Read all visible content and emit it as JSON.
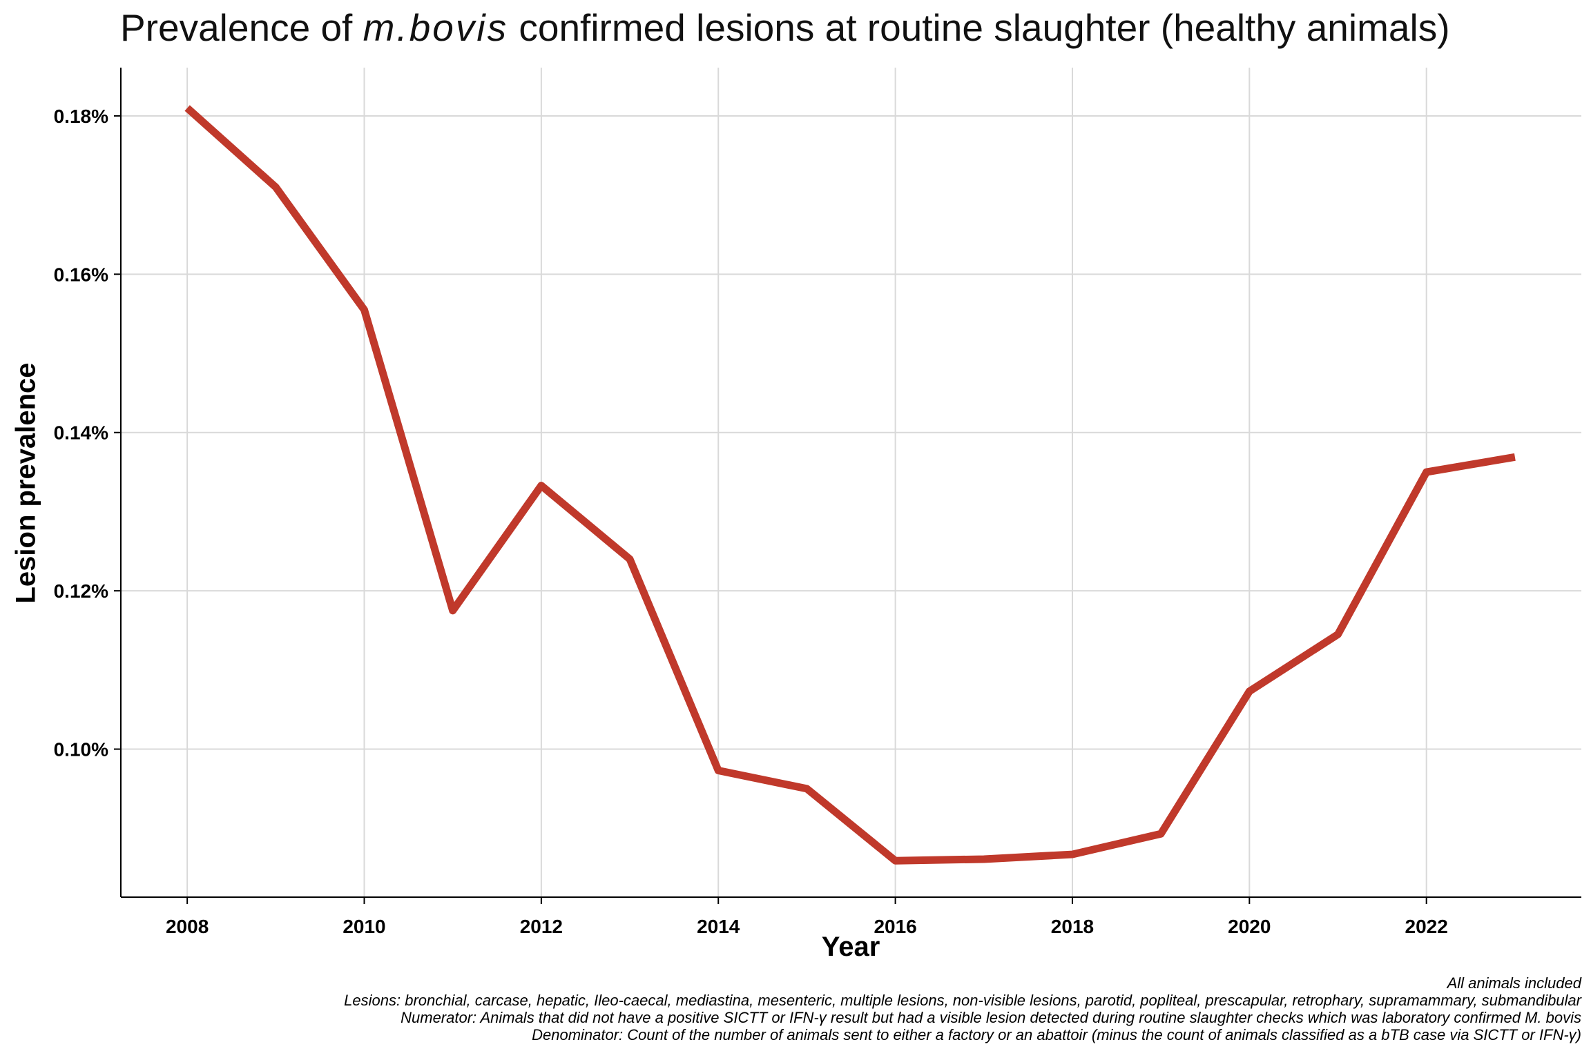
{
  "chart_data": {
    "type": "line",
    "title_prefix": "Prevalence of ",
    "title_emphasis": "m.bovis",
    "title_suffix": " confirmed lesions at routine slaughter (healthy animals)",
    "xlabel": "Year",
    "ylabel": "Lesion prevalence",
    "x": [
      2008,
      2009,
      2010,
      2011,
      2012,
      2013,
      2014,
      2015,
      2016,
      2017,
      2018,
      2019,
      2020,
      2021,
      2022,
      2023
    ],
    "series": [
      {
        "values": [
          0.181,
          0.171,
          0.1555,
          0.1175,
          0.1333,
          0.124,
          0.0973,
          0.095,
          0.0859,
          0.0861,
          0.0867,
          0.0893,
          0.1073,
          0.1145,
          0.135,
          0.1369
        ],
        "color": "#C0392B"
      }
    ],
    "x_ticks": [
      "2008",
      "2010",
      "2012",
      "2014",
      "2016",
      "2018",
      "2020",
      "2022"
    ],
    "y_ticks": [
      "0.10%",
      "0.12%",
      "0.14%",
      "0.16%",
      "0.18%"
    ],
    "xlim": [
      2007.25,
      2023.75
    ],
    "ylim": [
      0.0813,
      0.1861
    ],
    "grid": true,
    "caption": [
      "All animals included",
      "Lesions: bronchial, carcase, hepatic, Ileo-caecal, mediastina, mesenteric, multiple lesions, non-visible lesions, parotid, popliteal, prescapular, retrophary, supramammary, submandibular",
      "Numerator: Animals that did not have a positive SICTT or IFN-γ result but had a visible lesion detected during routine slaughter checks which was laboratory confirmed M. bovis",
      "Denominator: Count of the number of animals sent to either a factory or an abattoir (minus the count of animals classified as a bTB case via SICTT or IFN-γ)"
    ]
  }
}
